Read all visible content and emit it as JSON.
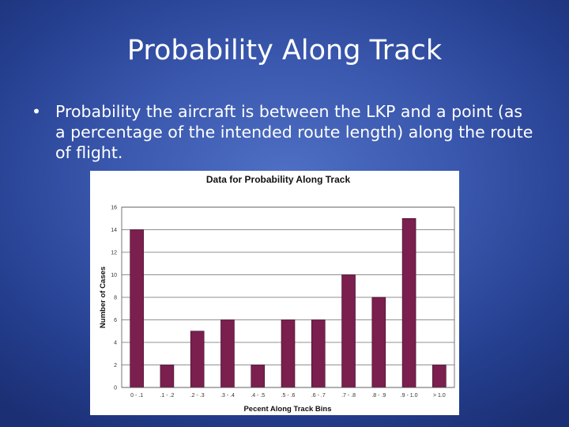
{
  "slide": {
    "title": "Probability Along Track",
    "bullet": "Probability the aircraft is between the LKP and a point (as a percentage of the intended route length) along the route of flight.",
    "bullet_symbol": "•"
  },
  "colors": {
    "background": "#3a58ae",
    "bar": "#7a1f4e",
    "text": "#ffffff"
  },
  "chart_data": {
    "type": "bar",
    "title": "Data for Probability Along Track",
    "xlabel": "Pecent Along Track Bins",
    "ylabel": "Number of Cases",
    "categories": [
      "0 - .1",
      ".1 - .2",
      ".2 - .3",
      ".3 - .4",
      ".4 - .5",
      ".5 - .6",
      ".6 - .7",
      ".7 - .8",
      ".8 - .9",
      ".9 - 1.0",
      "> 1.0"
    ],
    "values": [
      14,
      2,
      5,
      6,
      2,
      6,
      6,
      10,
      8,
      15,
      2
    ],
    "ylim": [
      0,
      16
    ],
    "yticks": [
      0,
      2,
      4,
      6,
      8,
      10,
      12,
      14,
      16
    ],
    "grid": true,
    "legend": "none"
  }
}
